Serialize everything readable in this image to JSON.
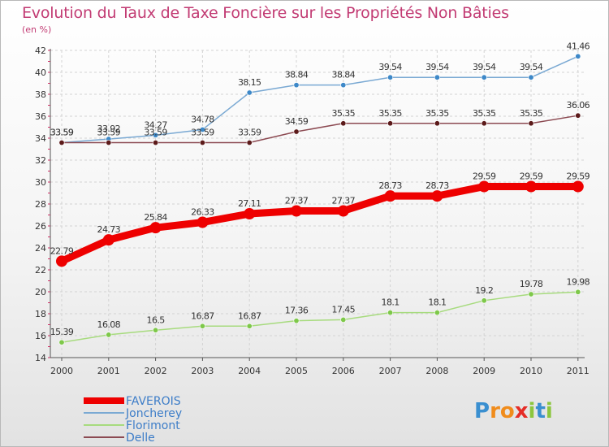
{
  "title": "Evolution du Taux de Taxe Foncière sur les Propriétés Non Bâties",
  "subtitle": "(en %)",
  "logo": {
    "letters": [
      "P",
      "r",
      "o",
      "x",
      "i",
      "t",
      "i"
    ],
    "colors": [
      "#3a8fd0",
      "#f08c1c",
      "#f08c1c",
      "#e52d27",
      "#8cc63e",
      "#3a8fd0",
      "#8cc63e"
    ]
  },
  "chart_data": {
    "type": "line",
    "x": [
      "2000",
      "2001",
      "2002",
      "2003",
      "2004",
      "2005",
      "2006",
      "2007",
      "2008",
      "2009",
      "2010",
      "2011"
    ],
    "ylim": [
      14,
      42
    ],
    "yticks": [
      "14",
      "16",
      "18",
      "20",
      "22",
      "24",
      "26",
      "28",
      "30",
      "32",
      "34",
      "36",
      "38",
      "40",
      "42"
    ],
    "grid": true,
    "legend_position": "bottom-left",
    "series": [
      {
        "name": "FAVEROIS",
        "color": "#ee0000",
        "thick": true,
        "values": [
          22.79,
          24.73,
          25.84,
          26.33,
          27.11,
          27.37,
          27.37,
          28.73,
          28.73,
          29.59,
          29.59,
          29.59
        ],
        "labels": [
          "22.79",
          "24.73",
          "25.84",
          "26.33",
          "27.11",
          "27.37",
          "27.37",
          "28.73",
          "28.73",
          "29.59",
          "29.59",
          "29.59"
        ]
      },
      {
        "name": "Joncherey",
        "color": "#7aa9d3",
        "marker": "#3d88c8",
        "thick": false,
        "values": [
          33.59,
          33.92,
          34.27,
          34.78,
          38.15,
          38.84,
          38.84,
          39.54,
          39.54,
          39.54,
          39.54,
          41.46
        ],
        "labels": [
          "33.59",
          "33.92",
          "34.27",
          "34.78",
          "38.15",
          "38.84",
          "38.84",
          "39.54",
          "39.54",
          "39.54",
          "39.54",
          "41.46"
        ]
      },
      {
        "name": "Florimont",
        "color": "#a7db7e",
        "marker": "#7ec84a",
        "thick": false,
        "values": [
          15.39,
          16.08,
          16.5,
          16.87,
          16.87,
          17.36,
          17.45,
          18.1,
          18.1,
          19.2,
          19.78,
          19.98
        ],
        "labels": [
          "15.39",
          "16.08",
          "16.5",
          "16.87",
          "16.87",
          "17.36",
          "17.45",
          "18.1",
          "18.1",
          "19.2",
          "19.78",
          "19.98"
        ]
      },
      {
        "name": "Delle",
        "color": "#8c4a52",
        "marker": "#5c1a1a",
        "thick": false,
        "values": [
          33.59,
          33.59,
          33.59,
          33.59,
          33.59,
          34.59,
          35.35,
          35.35,
          35.35,
          35.35,
          35.35,
          36.06
        ],
        "labels": [
          "33.59",
          "33.59",
          "33.59",
          "33.59",
          "33.59",
          "34.59",
          "35.35",
          "35.35",
          "35.35",
          "35.35",
          "35.35",
          "36.06"
        ]
      }
    ]
  }
}
